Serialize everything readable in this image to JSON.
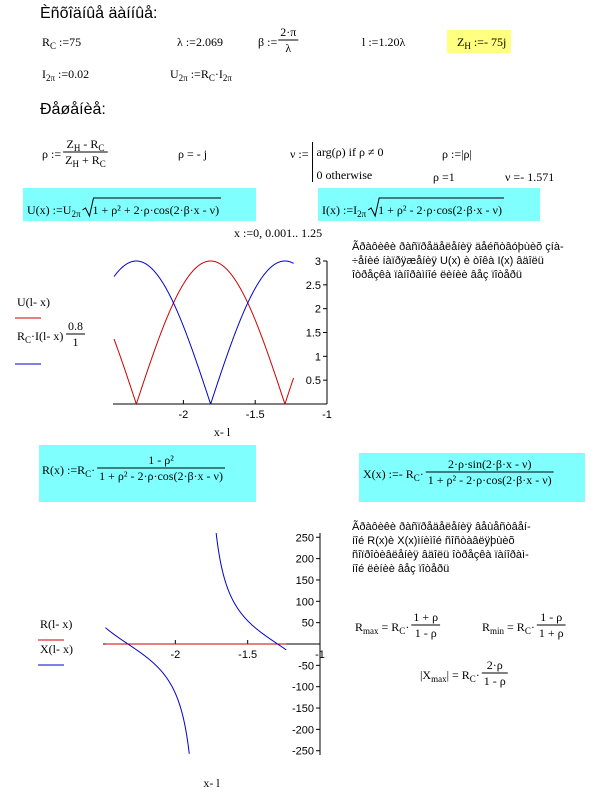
{
  "sheet": {
    "title1": "Èñõîäíûå äàííûå:",
    "Rc": {
      "name": "R",
      "sub": "C",
      "op": " :=",
      "value": 75
    },
    "lambda": {
      "name": "λ",
      "op": " :=",
      "value": 2.069
    },
    "beta": {
      "name": "β",
      "op": " :=",
      "num": "2·π",
      "den": "λ"
    },
    "l": {
      "name": "l",
      "op": " :=",
      "value": {
        "value": 1.2,
        "label": "1.20"
      },
      "unit": "λ"
    },
    "ZH": {
      "name": "Z",
      "sub": "H",
      "op": " :=",
      "value": {
        "value": -75,
        "label": "- 75"
      },
      "unit": "j"
    },
    "I2p": {
      "name": "I",
      "sub": "2π",
      "op": " :=",
      "value": 0.02
    },
    "U2p": {
      "name": "U",
      "sub": "2π",
      "op": " :=",
      "rhs": [
        "R",
        "C",
        "·I",
        "2π"
      ]
    },
    "title2": "Ðåøåíèå:",
    "rho_def": {
      "lhs": "ρ :=",
      "num": [
        "Z",
        "H",
        " -  R",
        "C"
      ],
      "den": [
        "Z",
        "H",
        " + R",
        "C"
      ]
    },
    "rho_val": "ρ  = - j",
    "nu_def": {
      "lhs": "ν :=",
      "cases": [
        "arg(ρ)   if   ρ ≠ 0",
        "0   otherwise"
      ]
    },
    "rho_abs": "ρ :=|ρ|",
    "rho_eq": {
      "lhs": "ρ  =",
      "value": 1
    },
    "nu_eq": {
      "lhs": "ν  =",
      "value": {
        "value": -1.571,
        "label": "- 1.571"
      }
    },
    "U_def": {
      "lhs": [
        "U(x) :=U",
        "2π"
      ],
      "radicand": "1 + ρ² + 2·ρ·cos(2·β·x -  ν)"
    },
    "I_def": {
      "lhs": [
        "I(x) :=I",
        "2π"
      ],
      "radicand": "1 + ρ² -  2·ρ·cos(2·β·x -  ν)"
    },
    "range": {
      "lhs": "x :=",
      "start": 0,
      "sep": ", ",
      "step": 0.001,
      "sep2": "..  ",
      "end": 1.25
    },
    "note1": [
      "Ãðàôèêè ðàñïðåäåëåíèÿ äåéñòâóþùèõ çíà-",
      "÷åíèé  íàïðÿæåíèÿ    U(x)  è  òîêà  I(x)  âäîëü",
      "îòðåçêà ïàíîðàìíîé ëèíèè âåç ïîòåðü"
    ],
    "plot1": {
      "xlabel": "x- l",
      "xlim": [
        -2.49,
        -1
      ],
      "ylim": [
        0,
        3
      ],
      "xticks": [
        -2,
        -1.5,
        -1
      ],
      "yticks": [
        0.5,
        1,
        1.5,
        2,
        2.5,
        3
      ],
      "series": [
        {
          "name": [
            "U(l- x)"
          ],
          "color": "#cc0000"
        },
        {
          "name": [
            "R",
            "C",
            "·I(l- x)"
          ],
          "color": "#0000cc"
        }
      ],
      "legend_note": {
        "num": "0.8",
        "den": "1"
      }
    },
    "R_def": {
      "lhs": [
        "R(x) :=R",
        "C",
        "·"
      ],
      "num": "1 -  ρ²",
      "den": "1 + ρ² -  2·ρ·cos(2·β·x -  ν)"
    },
    "X_def": {
      "lhs": [
        "X(x) :=- R",
        "C",
        "·"
      ],
      "num": "2·ρ·sin(2·β·x -  ν)",
      "den": "1 + ρ² -  2·ρ·cos(2·β·x -  ν)"
    },
    "note2": [
      "Ãðàôèêè ðàñïðåäåëåíèÿ âåùåñòâåí-",
      "íîé  R(x)è  X(x)ìíèìîé ñîñòàâëÿþùèõ",
      "ñîïðîòèâëåíèÿ    âäîëü îòðåçêà ïàíîðàì-",
      "íîé ëèíèè âåç ïîòåðü"
    ],
    "Rmax": {
      "lhs": [
        "R",
        "max",
        " = R",
        "C",
        "·"
      ],
      "num": "1 + ρ",
      "den": "1 -  ρ"
    },
    "Rmin": {
      "lhs": [
        "R",
        "min",
        " = R",
        "C",
        "·"
      ],
      "num": "1 -  ρ",
      "den": "1 + ρ"
    },
    "Xmax": {
      "lhs": [
        "|X",
        "max",
        "| = R",
        "C",
        "·"
      ],
      "num": "2·ρ",
      "den": "1 -  ρ"
    },
    "plot2": {
      "xlabel": "x- l",
      "xlim": [
        -2.5,
        -1
      ],
      "ylim": [
        -260,
        260
      ],
      "xticks": [
        -2,
        -1.5,
        -1
      ],
      "yticks": [
        -250,
        -200,
        -150,
        -100,
        -50,
        50,
        100,
        150,
        200,
        250
      ],
      "series": [
        {
          "name": [
            "R(l- x)"
          ],
          "color": "#cc0000"
        },
        {
          "name": [
            "X(l- x)"
          ],
          "color": "#0000cc"
        }
      ]
    }
  }
}
